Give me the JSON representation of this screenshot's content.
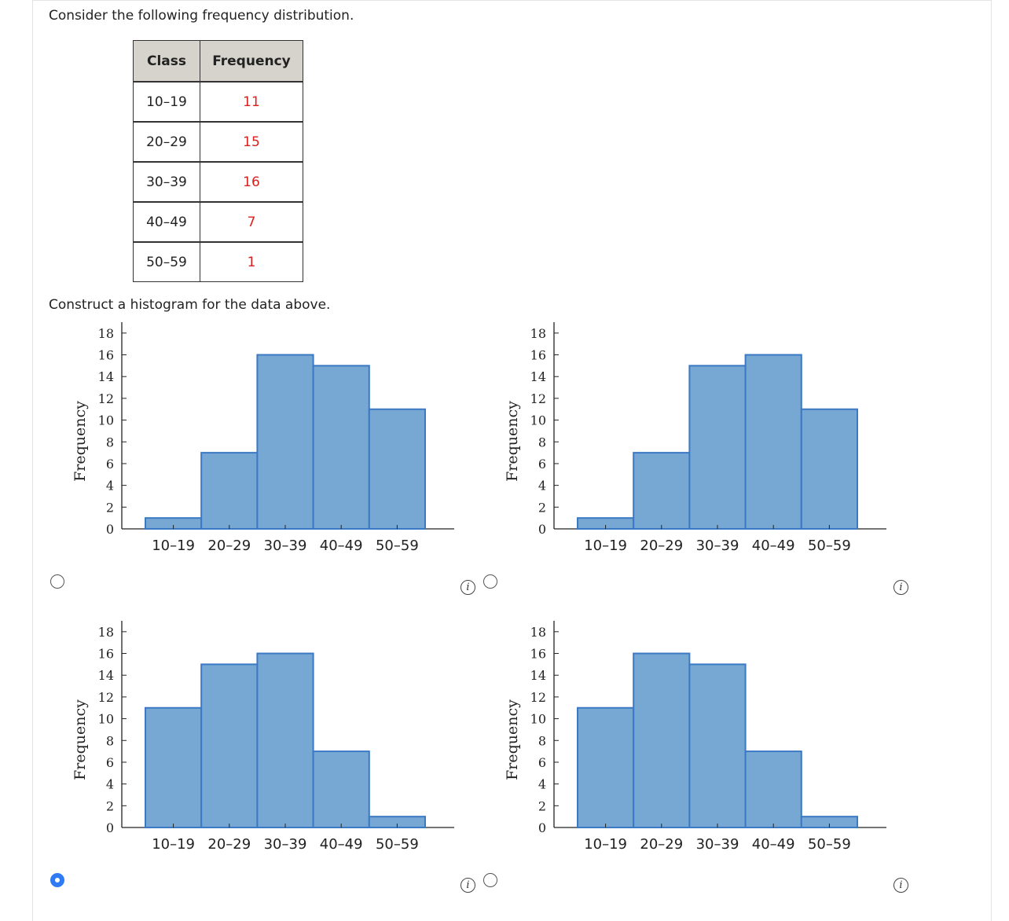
{
  "question": {
    "intro": "Consider the following frequency distribution.",
    "instruction": "Construct a histogram for the data above."
  },
  "table": {
    "headers": [
      "Class",
      "Frequency"
    ],
    "rows": [
      {
        "class": "10–19",
        "frequency": "11"
      },
      {
        "class": "20–29",
        "frequency": "15"
      },
      {
        "class": "30–39",
        "frequency": "16"
      },
      {
        "class": "40–49",
        "frequency": "7"
      },
      {
        "class": "50–59",
        "frequency": "1"
      }
    ]
  },
  "colors": {
    "bar_fill": "#76a8d3",
    "bar_stroke": "#3c79c4",
    "table_header_bg": "#d6d3cc",
    "frequency_text": "#d8201e",
    "radio_selected": "#2f7bf5"
  },
  "options": [
    {
      "selected": false,
      "info_icon": "info-icon"
    },
    {
      "selected": false,
      "info_icon": "info-icon"
    },
    {
      "selected": true,
      "info_icon": "info-icon"
    },
    {
      "selected": false,
      "info_icon": "info-icon"
    }
  ],
  "chart_data": [
    {
      "type": "bar",
      "title": "",
      "xlabel": "",
      "ylabel": "Frequency",
      "categories": [
        "10–19",
        "20–29",
        "30–39",
        "40–49",
        "50–59"
      ],
      "values": [
        1,
        7,
        16,
        15,
        11
      ],
      "ylim": [
        0,
        19
      ],
      "yticks": [
        0,
        2,
        4,
        6,
        8,
        10,
        12,
        14,
        16,
        18
      ],
      "grid": false
    },
    {
      "type": "bar",
      "title": "",
      "xlabel": "",
      "ylabel": "Frequency",
      "categories": [
        "10–19",
        "20–29",
        "30–39",
        "40–49",
        "50–59"
      ],
      "values": [
        1,
        7,
        15,
        16,
        11
      ],
      "ylim": [
        0,
        19
      ],
      "yticks": [
        0,
        2,
        4,
        6,
        8,
        10,
        12,
        14,
        16,
        18
      ],
      "grid": false
    },
    {
      "type": "bar",
      "title": "",
      "xlabel": "",
      "ylabel": "Frequency",
      "categories": [
        "10–19",
        "20–29",
        "30–39",
        "40–49",
        "50–59"
      ],
      "values": [
        11,
        15,
        16,
        7,
        1
      ],
      "ylim": [
        0,
        19
      ],
      "yticks": [
        0,
        2,
        4,
        6,
        8,
        10,
        12,
        14,
        16,
        18
      ],
      "grid": false
    },
    {
      "type": "bar",
      "title": "",
      "xlabel": "",
      "ylabel": "Frequency",
      "categories": [
        "10–19",
        "20–29",
        "30–39",
        "40–49",
        "50–59"
      ],
      "values": [
        11,
        16,
        15,
        7,
        1
      ],
      "ylim": [
        0,
        19
      ],
      "yticks": [
        0,
        2,
        4,
        6,
        8,
        10,
        12,
        14,
        16,
        18
      ],
      "grid": false
    }
  ]
}
